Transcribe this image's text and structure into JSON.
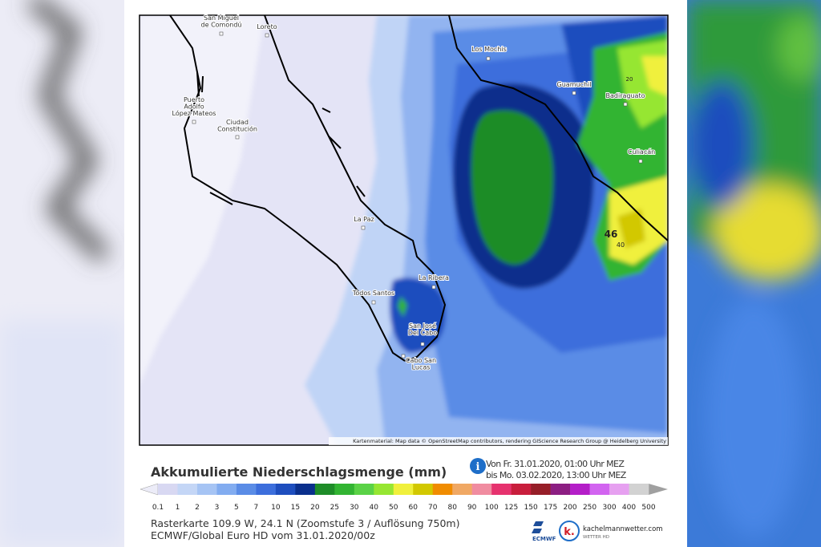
{
  "map": {
    "cities": [
      {
        "lines": [
          "San Miguel",
          "de Comondú"
        ]
      },
      {
        "lines": [
          "Loreto"
        ]
      },
      {
        "lines": [
          "Los Mochis"
        ]
      },
      {
        "lines": [
          "Guamuchil"
        ]
      },
      {
        "lines": [
          "Badiraguato"
        ]
      },
      {
        "lines": [
          "Puerto",
          "Adolfo",
          "López Mateos"
        ]
      },
      {
        "lines": [
          "Ciudad",
          "Constitución"
        ]
      },
      {
        "lines": [
          "Culiacán"
        ]
      },
      {
        "lines": [
          "La Paz"
        ]
      },
      {
        "lines": [
          "La Ribera"
        ]
      },
      {
        "lines": [
          "Todos Santos"
        ]
      },
      {
        "lines": [
          "San José",
          "Del Cabo"
        ]
      },
      {
        "lines": [
          "Cabo San",
          "Lucas"
        ]
      }
    ],
    "contour_labels": [
      "20",
      "46",
      "40"
    ],
    "attribution": "Kartenmaterial: Map data © OpenStreetMap contributors, rendering GIScience Research Group @ Heidelberg University"
  },
  "legend": {
    "title": "Akkumulierte Niederschlagsmenge (mm)",
    "period_from": "Von Fr. 31.01.2020, 01:00 Uhr MEZ",
    "period_to": "bis Mo. 03.02.2020, 13:00 Uhr MEZ",
    "labels": [
      "0.1",
      "1",
      "2",
      "3",
      "5",
      "7",
      "10",
      "15",
      "20",
      "25",
      "30",
      "40",
      "50",
      "60",
      "70",
      "80",
      "90",
      "100",
      "125",
      "150",
      "175",
      "200",
      "250",
      "300",
      "400",
      "500"
    ],
    "colors": [
      "#d8d8f2",
      "#c4d6f6",
      "#a6c4f4",
      "#82acf0",
      "#5a8ce6",
      "#3c6edc",
      "#1e4ebe",
      "#0a2f8c",
      "#1e8c28",
      "#32b432",
      "#5ad246",
      "#96e632",
      "#f0f03c",
      "#d2c800",
      "#f08c00",
      "#f0a864",
      "#f08ca0",
      "#e6326e",
      "#c81e3c",
      "#961e28",
      "#8c1e82",
      "#b41ec8",
      "#d264f0",
      "#e6a0f0",
      "#d2d2d2"
    ],
    "arrow_left_color": "#ececf8",
    "arrow_right_color": "#a0a0a0"
  },
  "footer": {
    "line1": "Rasterkarte 109.9 W, 24.1 N  (Zoomstufe 3 / Auflösung 750m)",
    "line2": "ECMWF/Global Euro HD vom 31.01.2020/00z",
    "logo1": "ECMWF",
    "logo2": "kachelmannwetter.com",
    "logo2_sub": "WETTER HD"
  }
}
